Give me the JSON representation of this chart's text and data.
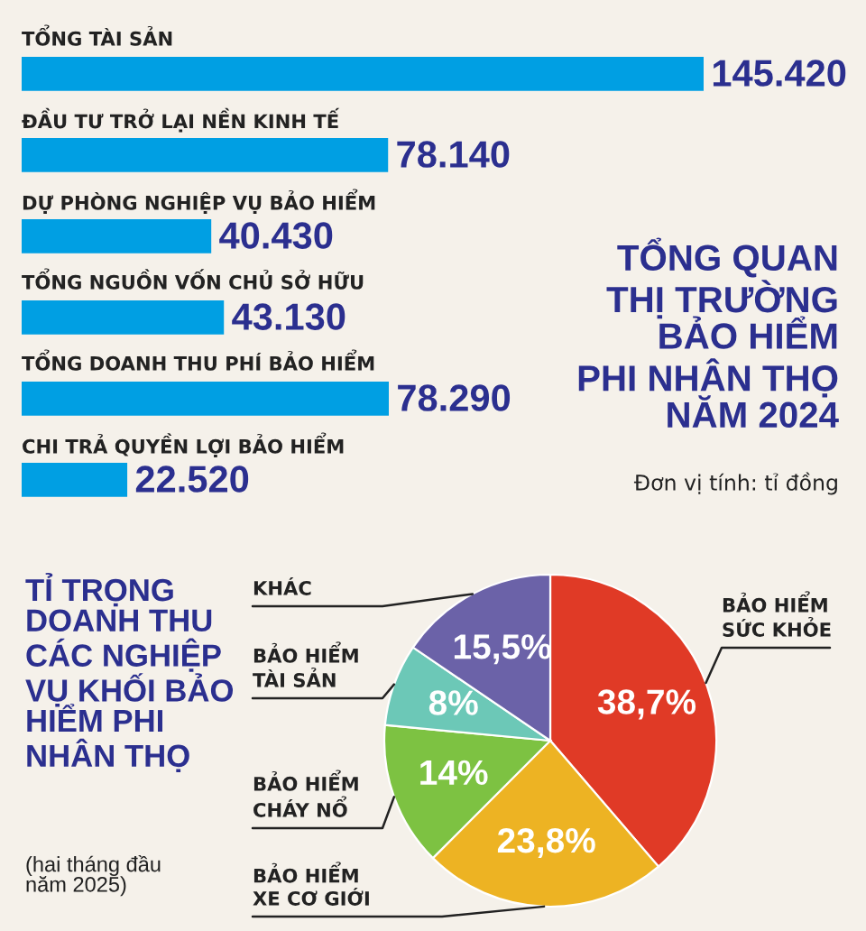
{
  "chart_data": [
    {
      "type": "bar",
      "orientation": "horizontal",
      "title": "TỔNG QUAN\nTHỊ TRƯỜNG\nBẢO HIỂM\nPHI NHÂN THỌ\nNĂM 2024",
      "subtitle": "Đơn vị tính: tỉ đồng",
      "categories": [
        "TỔNG TÀI SẢN",
        "ĐẦU TƯ TRỞ LẠI NỀN KINH TẾ",
        "DỰ PHÒNG NGHIỆP VỤ BẢO HIỂM",
        "TỔNG NGUỒN VỐN CHỦ SỞ HỮU",
        "TỔNG DOANH THU PHÍ BẢO HIỂM",
        "CHI TRẢ QUYỀN LỢI BẢO HIỂM"
      ],
      "values": [
        145420,
        78140,
        40430,
        43130,
        78290,
        22520
      ],
      "value_labels": [
        "145.420",
        "78.140",
        "40.430",
        "43.130",
        "78.290",
        "22.520"
      ],
      "color": "#009fe3"
    },
    {
      "type": "pie",
      "title": "TỈ TRỌNG\nDOANH THU\nCÁC NGHIỆP\nVỤ KHỐI BẢO\nHIỂM PHI\nNHÂN THỌ",
      "subtitle": "(hai tháng đầu\nnăm 2025)",
      "categories": [
        "BẢO HIỂM\nSỨC KHỎE",
        "BẢO HIỂM\nXE CƠ GIỚI",
        "BẢO HIỂM\nCHÁY NỔ",
        "BẢO HIỂM\nTÀI SẢN",
        "KHÁC"
      ],
      "values": [
        38.7,
        23.8,
        14,
        8,
        15.5
      ],
      "value_labels": [
        "38,7%",
        "23,8%",
        "14%",
        "8%",
        "15,5%"
      ],
      "colors": [
        "#e03a26",
        "#edb323",
        "#7dc242",
        "#6cc8b7",
        "#6b62a8"
      ]
    }
  ]
}
